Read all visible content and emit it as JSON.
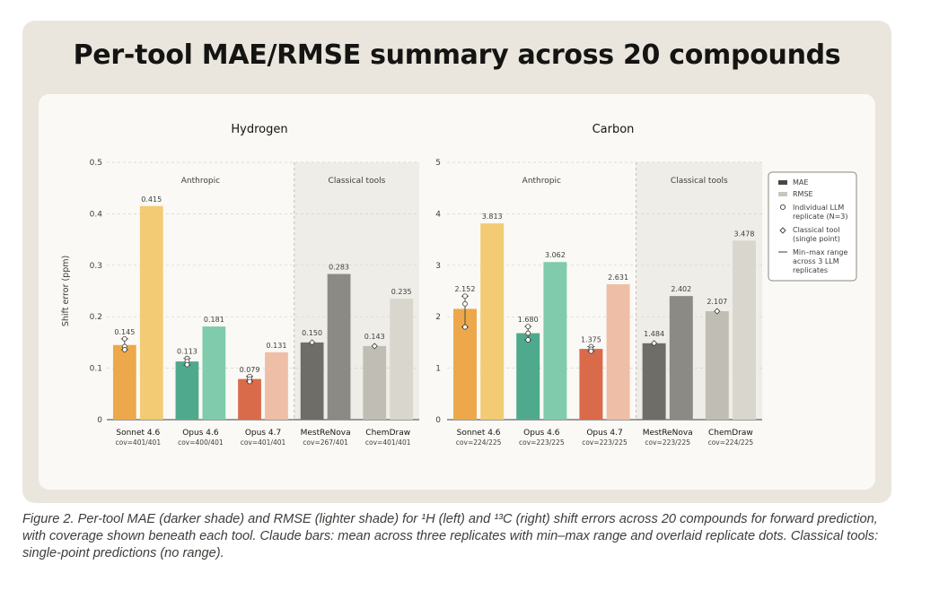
{
  "page": {
    "title": "Per-tool MAE/RMSE summary across 20 compounds",
    "caption": "Figure 2. Per-tool MAE (darker shade) and RMSE (lighter shade) for ¹H (left) and ¹³C (right) shift errors across 20 compounds for forward prediction, with coverage shown beneath each tool. Claude bars: mean across three replicates with min–max range and overlaid replicate dots. Classical tools: single-point predictions (no range)."
  },
  "legend": {
    "mae": "MAE",
    "rmse": "RMSE",
    "individual_line1": "Individual LLM",
    "individual_line2": "replicate (N=3)",
    "classical_line1": "Classical tool",
    "classical_line2": "(single point)",
    "range_line1": "Min–max range",
    "range_line2": "across 3 LLM",
    "range_line3": "replicates"
  },
  "chart_data": [
    {
      "type": "bar",
      "title": "Hydrogen",
      "ylabel": "Shift error (ppm)",
      "ylim": [
        0,
        0.5
      ],
      "yticks": [
        "0",
        "0.1",
        "0.2",
        "0.3",
        "0.4",
        "0.5"
      ],
      "group_labels": [
        "Anthropic",
        "Classical tools"
      ],
      "categories": [
        "Sonnet 4.6",
        "Opus 4.6",
        "Opus 4.7",
        "MestReNova",
        "ChemDraw"
      ],
      "coverage": [
        "cov=401/401",
        "cov=400/401",
        "cov=401/401",
        "cov=267/401",
        "cov=401/401"
      ],
      "series": [
        {
          "name": "MAE",
          "values": [
            0.145,
            0.113,
            0.079,
            0.15,
            0.143
          ],
          "labels": [
            "0.145",
            "0.113",
            "0.079",
            "0.150",
            "0.143"
          ]
        },
        {
          "name": "RMSE",
          "values": [
            0.415,
            0.181,
            0.131,
            0.283,
            0.235
          ],
          "labels": [
            "0.415",
            "0.181",
            "0.131",
            "0.283",
            "0.235"
          ]
        }
      ],
      "mae_range": [
        [
          0.136,
          0.157
        ],
        [
          0.106,
          0.119
        ],
        [
          0.074,
          0.084
        ],
        null,
        null
      ],
      "replicates": [
        [
          0.157,
          0.142,
          0.136
        ],
        [
          0.119,
          0.113,
          0.107
        ],
        [
          0.084,
          0.079,
          0.074
        ],
        null,
        null
      ],
      "colors_mae": [
        "#eca84a",
        "#4fa98d",
        "#d96b4b",
        "#6f6d68",
        "#c0bdb5"
      ],
      "colors_rmse": [
        "#f3cb74",
        "#7fcbac",
        "#eebfa6",
        "#8c8a85",
        "#d9d6ce"
      ]
    },
    {
      "type": "bar",
      "title": "Carbon",
      "ylabel": "",
      "ylim": [
        0,
        5
      ],
      "yticks": [
        "0",
        "1",
        "2",
        "3",
        "4",
        "5"
      ],
      "group_labels": [
        "Anthropic",
        "Classical tools"
      ],
      "categories": [
        "Sonnet 4.6",
        "Opus 4.6",
        "Opus 4.7",
        "MestReNova",
        "ChemDraw"
      ],
      "coverage": [
        "cov=224/225",
        "cov=223/225",
        "cov=223/225",
        "cov=223/225",
        "cov=224/225"
      ],
      "series": [
        {
          "name": "MAE",
          "values": [
            2.152,
            1.68,
            1.375,
            1.484,
            2.107
          ],
          "labels": [
            "2.152",
            "1.680",
            "1.375",
            "1.484",
            "2.107"
          ]
        },
        {
          "name": "RMSE",
          "values": [
            3.813,
            3.062,
            2.631,
            2.402,
            3.478
          ],
          "labels": [
            "3.813",
            "3.062",
            "2.631",
            "2.402",
            "3.478"
          ]
        }
      ],
      "mae_range": [
        [
          1.8,
          2.4
        ],
        [
          1.55,
          1.81
        ],
        [
          1.33,
          1.42
        ],
        null,
        null
      ],
      "replicates": [
        [
          2.4,
          2.25,
          1.8
        ],
        [
          1.81,
          1.68,
          1.55
        ],
        [
          1.42,
          1.37,
          1.33
        ],
        null,
        null
      ],
      "colors_mae": [
        "#eca84a",
        "#4fa98d",
        "#d96b4b",
        "#6f6d68",
        "#c0bdb5"
      ],
      "colors_rmse": [
        "#f3cb74",
        "#7fcbac",
        "#eebfa6",
        "#8c8a85",
        "#d9d6ce"
      ]
    }
  ]
}
